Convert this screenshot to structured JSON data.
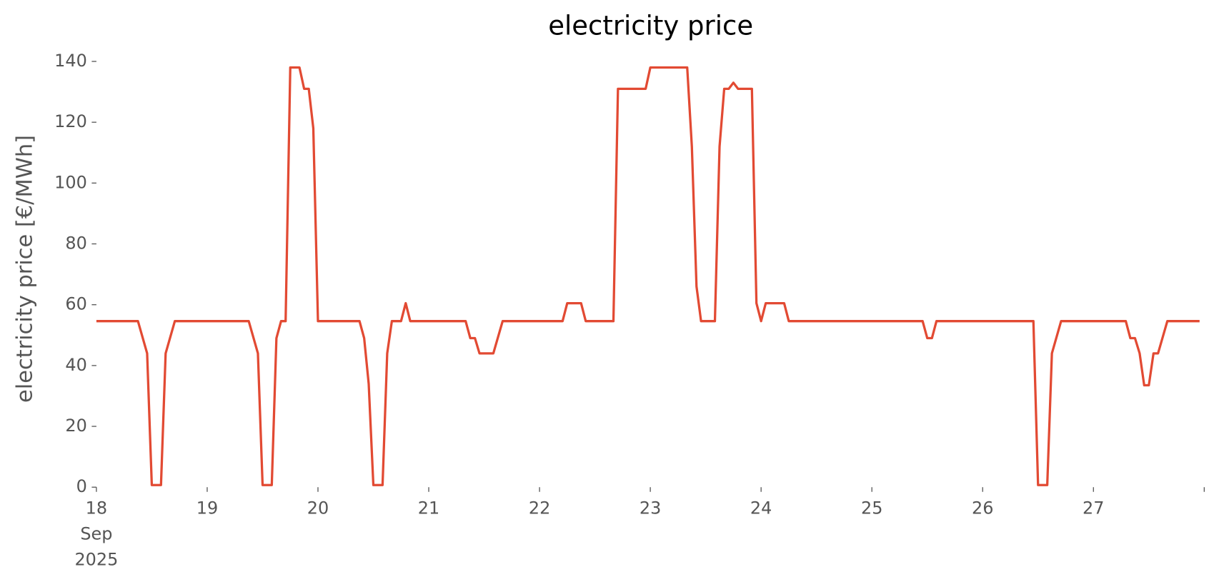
{
  "chart_data": {
    "type": "line",
    "title": "electricity price",
    "y_label": "electricity price [€/MWh]",
    "x": [
      18,
      18.375,
      18.458,
      18.5,
      18.583,
      18.625,
      18.708,
      19.375,
      19.458,
      19.5,
      19.583,
      19.625,
      19.667,
      19.708,
      19.75,
      19.833,
      19.875,
      19.917,
      19.958,
      20,
      20.375,
      20.417,
      20.458,
      20.5,
      20.583,
      20.625,
      20.667,
      20.75,
      20.792,
      20.833,
      21.333,
      21.375,
      21.417,
      21.458,
      21.583,
      21.667,
      22.208,
      22.25,
      22.375,
      22.417,
      22.667,
      22.708,
      22.958,
      23,
      23.333,
      23.375,
      23.417,
      23.458,
      23.583,
      23.625,
      23.667,
      23.708,
      23.75,
      23.792,
      23.917,
      23.958,
      24,
      24.042,
      24.208,
      24.25,
      25.458,
      25.5,
      25.542,
      25.583,
      26.458,
      26.5,
      26.583,
      26.625,
      26.708,
      27.292,
      27.333,
      27.375,
      27.417,
      27.458,
      27.5,
      27.542,
      27.583,
      27.667,
      27.958
    ],
    "series": [
      {
        "color": "#e24a33",
        "values": [
          54.6,
          54.6,
          44,
          0.7,
          0.7,
          44,
          54.6,
          54.6,
          44,
          0.7,
          0.7,
          49,
          54.6,
          54.6,
          138,
          138,
          131,
          131,
          118,
          54.6,
          54.6,
          49,
          34,
          0.7,
          0.7,
          44,
          54.6,
          54.6,
          60.5,
          54.6,
          54.6,
          49,
          49,
          44,
          44,
          54.6,
          54.6,
          60.5,
          60.5,
          54.6,
          54.6,
          131,
          131,
          138,
          138,
          112,
          66,
          54.6,
          54.6,
          112,
          131,
          131,
          133,
          131,
          131,
          60.5,
          54.6,
          60.5,
          60.5,
          54.6,
          54.6,
          49,
          49,
          54.6,
          54.6,
          0.7,
          0.7,
          44,
          54.6,
          54.6,
          49,
          49,
          44,
          33.5,
          33.5,
          44,
          44,
          54.6,
          54.6
        ]
      }
    ],
    "xlim": [
      18,
      28
    ],
    "xticks": [
      {
        "value": 18,
        "label": "18\nSep\n2025"
      },
      19,
      20,
      21,
      22,
      23,
      24,
      25,
      26,
      27,
      {
        "value": 28,
        "label": null
      }
    ],
    "ylim": [
      0,
      140
    ],
    "yticks": [
      0,
      20,
      40,
      60,
      80,
      100,
      120,
      140
    ]
  }
}
